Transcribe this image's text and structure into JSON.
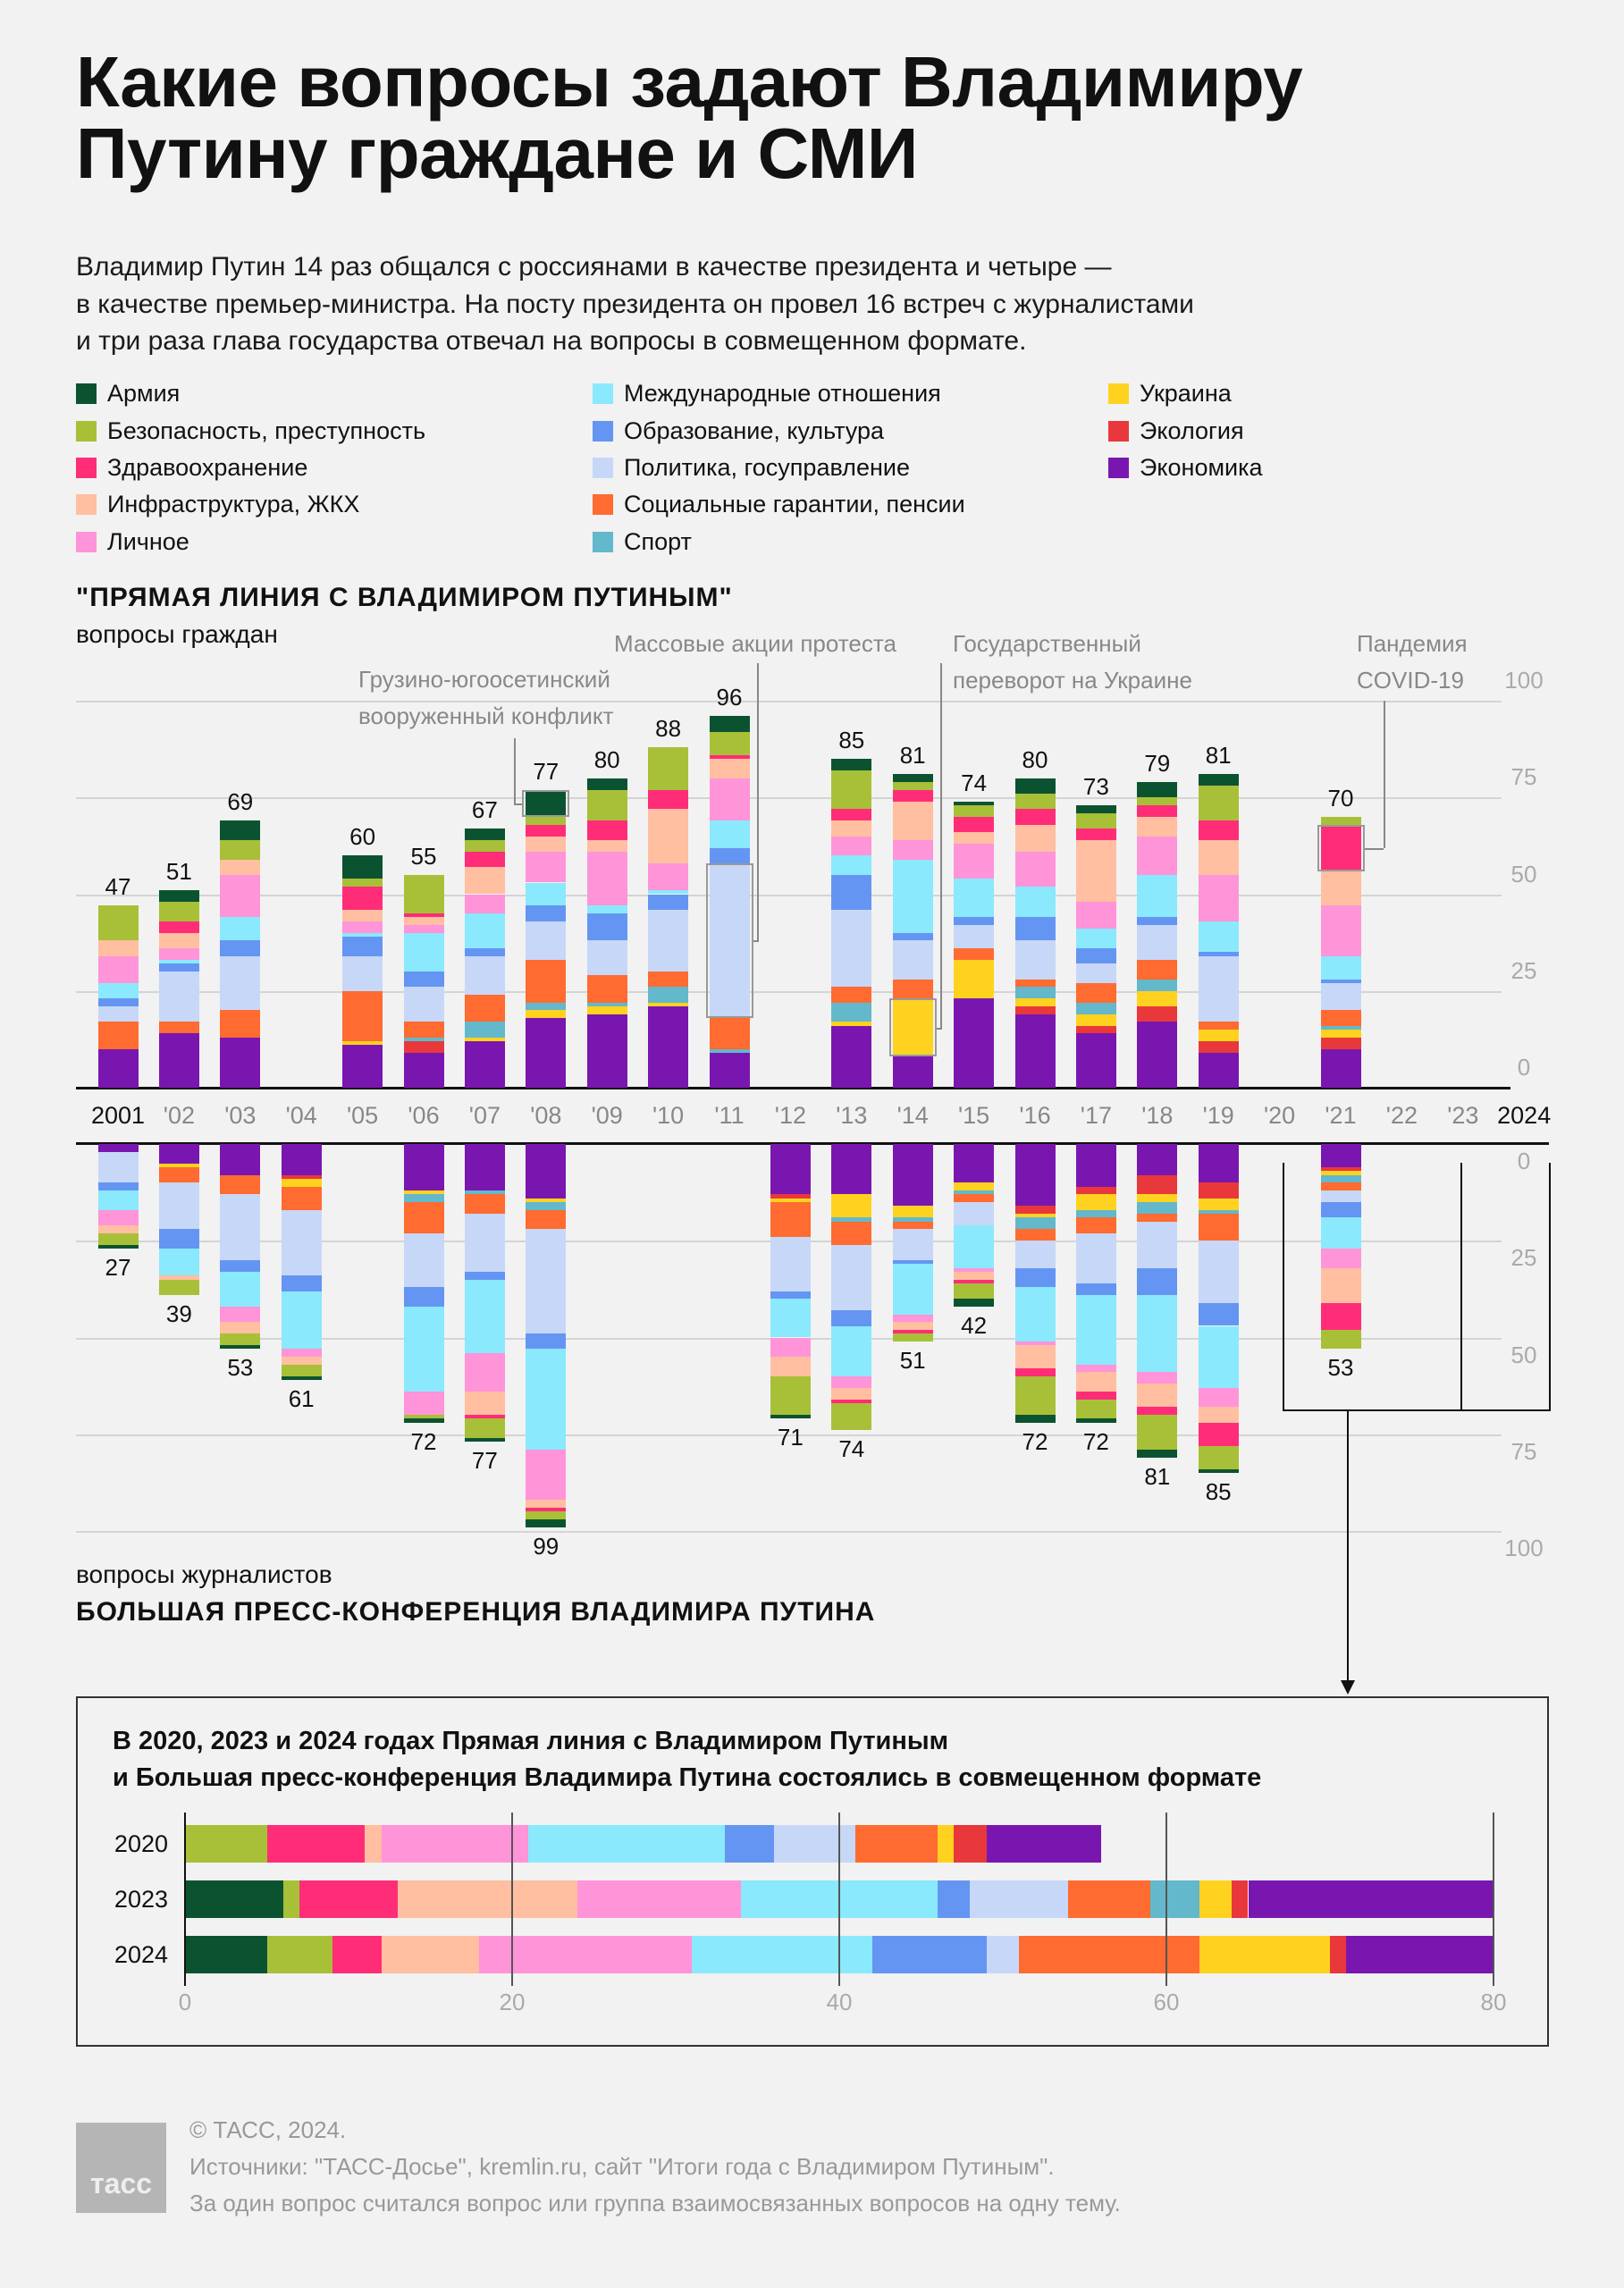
{
  "title": [
    "Какие вопросы задают Владимиру",
    "Путину граждане и СМИ"
  ],
  "intro": [
    "Владимир Путин 14 раз общался с россиянами в качестве президента и четыре —",
    "в качестве премьер-министра. На посту президента он провел 16 встреч с журналистами",
    "и три раза глава государства отвечал на вопросы в совмещенном формате."
  ],
  "direct_line_section": {
    "title": "\"ПРЯМАЯ ЛИНИЯ С ВЛАДИМИРОМ ПУТИНЫМ\"",
    "subtitle": "вопросы граждан"
  },
  "press_section": {
    "subtitle": "вопросы журналистов",
    "title": "БОЛЬШАЯ ПРЕСС-КОНФЕРЕНЦИЯ ВЛАДИМИРА ПУТИНА"
  },
  "combined_box": {
    "title": [
      "В 2020, 2023 и 2024 годах Прямая линия с Владимиром Путиным",
      "и Большая пресс-конференция Владимира Путина состоялись в совмещенном формате"
    ]
  },
  "footer": {
    "logo": "тасс",
    "copyright": "© ТАСС, 2024.",
    "sources": "Источники: \"ТАСС-Досье\", kremlin.ru, сайт \"Итоги года с Владимиром Путиным\".",
    "note": "За один вопрос считался вопрос или группа взаимосвязанных вопросов на одну тему."
  },
  "chart_data": {
    "type": "bar",
    "stacked": true,
    "topics": [
      {
        "name": "Армия",
        "color": "#0b5330"
      },
      {
        "name": "Безопасность, преступность",
        "color": "#a8c037"
      },
      {
        "name": "Здравоохранение",
        "color": "#ff2d78"
      },
      {
        "name": "Инфраструктура, ЖКХ",
        "color": "#ffbfa0"
      },
      {
        "name": "Личное",
        "color": "#ff94d9"
      },
      {
        "name": "Международные отношения",
        "color": "#8ae9fc"
      },
      {
        "name": "Образование, культура",
        "color": "#6495f2"
      },
      {
        "name": "Политика, госуправление",
        "color": "#c7d7f7"
      },
      {
        "name": "Социальные гарантии, пенсии",
        "color": "#ff6b30"
      },
      {
        "name": "Спорт",
        "color": "#63b8cb"
      },
      {
        "name": "Украина",
        "color": "#ffd21f"
      },
      {
        "name": "Экология",
        "color": "#e8383b"
      },
      {
        "name": "Экономика",
        "color": "#7a16b0"
      }
    ],
    "year_labels": [
      "2001",
      "'02",
      "'03",
      "'04",
      "'05",
      "'06",
      "'07",
      "'08",
      "'09",
      "'10",
      "'11",
      "'12",
      "'13",
      "'14",
      "'15",
      "'16",
      "'17",
      "'18",
      "'19",
      "'20",
      "'21",
      "'22",
      "'23",
      "2024"
    ],
    "y_ticks": [
      "0",
      "25",
      "50",
      "75",
      "100"
    ],
    "ylim": [
      0,
      100
    ],
    "grid": true,
    "direct_line": [
      {
        "year": 2001,
        "total": "47",
        "values": [
          0,
          9,
          0,
          4,
          7,
          4,
          2,
          4,
          7,
          0,
          0,
          0,
          10
        ]
      },
      {
        "year": 2002,
        "total": "51",
        "values": [
          3,
          5,
          3,
          4,
          3,
          1,
          2,
          13,
          3,
          0,
          0,
          0,
          14
        ]
      },
      {
        "year": 2003,
        "total": "69",
        "values": [
          5,
          5,
          0,
          4,
          11,
          6,
          4,
          14,
          7,
          0,
          0,
          0,
          13
        ]
      },
      {
        "year": 2005,
        "total": "60",
        "values": [
          6,
          2,
          6,
          3,
          3,
          1,
          5,
          9,
          13,
          0,
          1,
          0,
          11
        ]
      },
      {
        "year": 2006,
        "total": "55",
        "values": [
          0,
          10,
          1,
          2,
          2,
          10,
          4,
          9,
          4,
          1,
          0,
          3,
          9
        ]
      },
      {
        "year": 2007,
        "total": "67",
        "values": [
          3,
          3,
          4,
          7,
          5,
          9,
          2,
          10,
          7,
          4,
          1,
          0,
          12
        ]
      },
      {
        "year": 2008,
        "total": "77",
        "values": [
          7,
          2,
          3,
          4,
          8,
          6,
          4,
          10,
          11,
          2,
          2,
          0,
          18
        ]
      },
      {
        "year": 2009,
        "total": "80",
        "values": [
          3,
          8,
          5,
          3,
          14,
          2,
          7,
          9,
          7,
          1,
          2,
          0,
          19
        ]
      },
      {
        "year": 2010,
        "total": "88",
        "values": [
          0,
          11,
          5,
          14,
          7,
          1,
          4,
          16,
          4,
          4,
          1,
          0,
          21
        ]
      },
      {
        "year": 2011,
        "total": "96",
        "values": [
          4,
          6,
          1,
          5,
          11,
          7,
          4,
          40,
          8,
          1,
          0,
          0,
          9
        ]
      },
      {
        "year": 2013,
        "total": "85",
        "values": [
          3,
          10,
          3,
          4,
          5,
          5,
          9,
          20,
          4,
          5,
          1,
          0,
          16
        ]
      },
      {
        "year": 2014,
        "total": "81",
        "values": [
          2,
          2,
          3,
          10,
          5,
          19,
          2,
          10,
          5,
          0,
          15,
          0,
          8
        ]
      },
      {
        "year": 2015,
        "total": "74",
        "values": [
          1,
          3,
          4,
          3,
          9,
          10,
          2,
          6,
          3,
          0,
          10,
          0,
          23
        ]
      },
      {
        "year": 2016,
        "total": "80",
        "values": [
          4,
          4,
          4,
          7,
          9,
          8,
          6,
          10,
          2,
          3,
          2,
          2,
          19
        ]
      },
      {
        "year": 2017,
        "total": "73",
        "values": [
          2,
          4,
          3,
          16,
          7,
          5,
          4,
          5,
          5,
          3,
          3,
          2,
          14
        ]
      },
      {
        "year": 2018,
        "total": "79",
        "values": [
          4,
          2,
          3,
          5,
          10,
          11,
          2,
          9,
          5,
          3,
          4,
          4,
          17
        ]
      },
      {
        "year": 2019,
        "total": "81",
        "values": [
          3,
          9,
          5,
          9,
          12,
          8,
          1,
          17,
          2,
          0,
          3,
          3,
          9
        ]
      },
      {
        "year": 2021,
        "total": "70",
        "values": [
          0,
          2,
          12,
          9,
          13,
          6,
          1,
          7,
          4,
          1,
          2,
          3,
          10
        ]
      }
    ],
    "press_conference": [
      {
        "year": 2001,
        "total": "27",
        "values": [
          1,
          3,
          0,
          2,
          4,
          5,
          2,
          8,
          0,
          0,
          0,
          0,
          2
        ]
      },
      {
        "year": 2002,
        "total": "39",
        "values": [
          0,
          4,
          0,
          1,
          0,
          7,
          5,
          12,
          4,
          0,
          1,
          0,
          5
        ]
      },
      {
        "year": 2003,
        "total": "53",
        "values": [
          1,
          3,
          0,
          3,
          4,
          9,
          3,
          17,
          5,
          0,
          0,
          0,
          8
        ]
      },
      {
        "year": 2004,
        "total": "61",
        "values": [
          1,
          3,
          0,
          2,
          2,
          15,
          4,
          17,
          6,
          0,
          2,
          1,
          8
        ]
      },
      {
        "year": 2006,
        "total": "72",
        "values": [
          1,
          1,
          0,
          0,
          6,
          22,
          5,
          14,
          8,
          2,
          1,
          0,
          12
        ]
      },
      {
        "year": 2007,
        "total": "77",
        "values": [
          1,
          5,
          1,
          6,
          10,
          19,
          2,
          15,
          5,
          1,
          0,
          0,
          12
        ]
      },
      {
        "year": 2008,
        "total": "99",
        "values": [
          2,
          2,
          1,
          2,
          13,
          26,
          4,
          27,
          5,
          2,
          1,
          0,
          14
        ]
      },
      {
        "year": 2012,
        "total": "71",
        "values": [
          1,
          10,
          0,
          5,
          5,
          10,
          2,
          14,
          9,
          0,
          1,
          1,
          13
        ]
      },
      {
        "year": 2013,
        "total": "74",
        "values": [
          0,
          7,
          1,
          3,
          3,
          13,
          4,
          17,
          6,
          1,
          6,
          0,
          13
        ]
      },
      {
        "year": 2014,
        "total": "51",
        "values": [
          0,
          2,
          1,
          2,
          2,
          13,
          1,
          8,
          2,
          1,
          3,
          0,
          16
        ]
      },
      {
        "year": 2015,
        "total": "42",
        "values": [
          2,
          4,
          1,
          2,
          1,
          11,
          0,
          6,
          2,
          1,
          2,
          0,
          10
        ]
      },
      {
        "year": 2016,
        "total": "72",
        "values": [
          2,
          10,
          2,
          6,
          1,
          14,
          5,
          7,
          3,
          3,
          1,
          2,
          16
        ]
      },
      {
        "year": 2017,
        "total": "72",
        "values": [
          1,
          5,
          2,
          5,
          2,
          18,
          3,
          13,
          4,
          2,
          4,
          2,
          11
        ]
      },
      {
        "year": 2018,
        "total": "81",
        "values": [
          2,
          9,
          2,
          6,
          3,
          20,
          7,
          12,
          2,
          3,
          2,
          5,
          8
        ]
      },
      {
        "year": 2019,
        "total": "85",
        "values": [
          1,
          6,
          6,
          4,
          5,
          16,
          6,
          16,
          7,
          1,
          3,
          4,
          10
        ]
      },
      {
        "year": 2021,
        "total": "53",
        "values": [
          0,
          5,
          7,
          9,
          5,
          8,
          4,
          3,
          2,
          2,
          1,
          1,
          6
        ]
      }
    ],
    "annotations": [
      {
        "lines": [
          "Грузино-югоосетинский",
          "вооруженный конфликт"
        ],
        "year": 2008,
        "topic": "Армия"
      },
      {
        "lines": [
          "Массовые акции протеста"
        ],
        "year": 2011,
        "topic": "Политика, госуправление"
      },
      {
        "lines": [
          "Государственный",
          "переворот на Украине"
        ],
        "year": 2014,
        "topic": "Украина"
      },
      {
        "lines": [
          "Пандемия",
          "COVID-19"
        ],
        "year": 2021,
        "topic": "Здравоохранение"
      }
    ],
    "combined": {
      "xlim": [
        0,
        80
      ],
      "x_ticks": [
        "0",
        "20",
        "40",
        "60",
        "80"
      ],
      "rows": [
        {
          "year": "2020",
          "values": [
            0,
            5,
            6,
            1,
            9,
            12,
            3,
            5,
            5,
            0,
            1,
            2,
            7
          ]
        },
        {
          "year": "2023",
          "values": [
            6,
            1,
            6,
            11,
            10,
            12,
            2,
            6,
            5,
            3,
            2,
            1,
            15
          ]
        },
        {
          "year": "2024",
          "values": [
            5,
            4,
            3,
            6,
            13,
            11,
            7,
            2,
            11,
            0,
            8,
            1,
            9
          ]
        }
      ]
    }
  }
}
